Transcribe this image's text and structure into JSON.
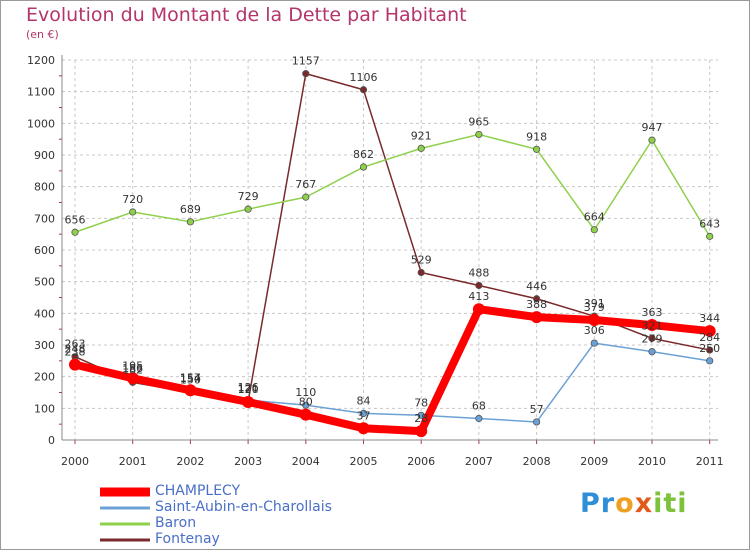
{
  "title": "Evolution du Montant de la Dette par Habitant",
  "subtitle": "(en €)",
  "chart_data": {
    "type": "line",
    "x": [
      "2000",
      "2001",
      "2002",
      "2003",
      "2004",
      "2005",
      "2006",
      "2007",
      "2008",
      "2009",
      "2010",
      "2011"
    ],
    "ylim": [
      0,
      1200
    ],
    "yticks": [
      "0",
      "100",
      "200",
      "300",
      "400",
      "500",
      "600",
      "700",
      "800",
      "900",
      "1000",
      "1100",
      "1200"
    ],
    "grid": true,
    "legend_position": "bottom-left",
    "series": [
      {
        "name": "CHAMPLECY",
        "color": "#ff0000",
        "values": [
          238,
          195,
          157,
          120,
          80,
          37,
          28,
          413,
          388,
          379,
          363,
          344
        ],
        "labels": [
          "238",
          "195",
          "157",
          "120",
          "80",
          "37",
          "28",
          "413",
          "388",
          "379",
          "363",
          "344"
        ]
      },
      {
        "name": "Saint-Aubin-en-Charollais",
        "color": "#6ba2d6",
        "values": [
          248,
          186,
          154,
          126,
          110,
          84,
          78,
          68,
          57,
          306,
          279,
          250
        ],
        "labels": [
          "248",
          "186",
          "154",
          "126",
          "110",
          "84",
          "78",
          "68",
          "57",
          "306",
          "279",
          "250"
        ]
      },
      {
        "name": "Baron",
        "color": "#8fd04a",
        "values": [
          656,
          720,
          689,
          729,
          767,
          862,
          921,
          965,
          918,
          664,
          947,
          643
        ],
        "labels": [
          "656",
          "720",
          "689",
          "729",
          "767",
          "862",
          "921",
          "965",
          "918",
          "664",
          "947",
          "643"
        ]
      },
      {
        "name": "Fontenay",
        "color": "#7a2a2a",
        "values": [
          263,
          182,
          150,
          121,
          1157,
          1106,
          529,
          488,
          446,
          391,
          321,
          284
        ],
        "labels": [
          "263",
          "182",
          "150",
          "121",
          "1157",
          "1106",
          "529",
          "488",
          "446",
          "391",
          "321",
          "284"
        ]
      }
    ]
  },
  "logo": {
    "letters": [
      "P",
      "r",
      "o",
      "x",
      "i",
      "t",
      "i"
    ],
    "colors": [
      "#2f8fd6",
      "#2f8fd6",
      "#f0a020",
      "#e05a1a",
      "#7cc23a",
      "#7cc23a",
      "#7cc23a"
    ]
  }
}
